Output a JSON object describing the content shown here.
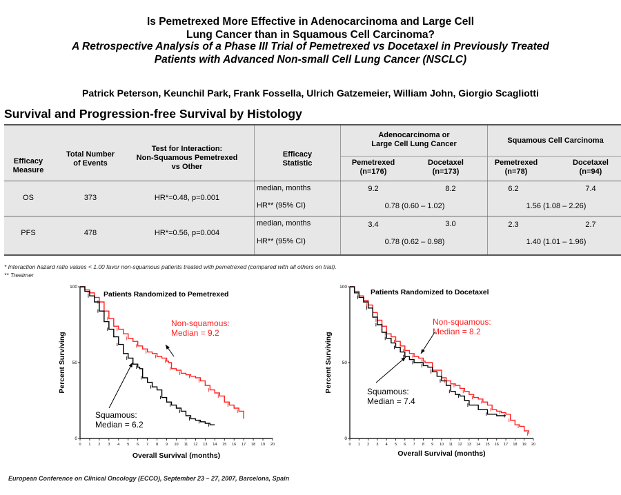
{
  "title": {
    "line1": "Is Pemetrexed More Effective in Adenocarcinoma and Large Cell",
    "line2": "Lung Cancer than in Squamous Cell Carcinoma?",
    "line3": "A Retrospective Analysis of a Phase III Trial of Pemetrexed vs Docetaxel in Previously Treated",
    "line4": "Patients with Advanced Non-small Cell Lung Cancer (NSCLC)"
  },
  "authors": "Patrick Peterson, Keunchil Park, Frank Fossella, Ulrich Gatzemeier, William John, Giorgio Scagliotti",
  "section_title": "Survival and Progression-free Survival by Histology",
  "table": {
    "headers": {
      "efficacy_measure": [
        "Efficacy",
        "Measure"
      ],
      "total_events": [
        "Total Number",
        "of Events"
      ],
      "interaction": [
        "Test for Interaction:",
        "Non-Squamous Pemetrexed",
        "vs Other"
      ],
      "statistic": [
        "Efficacy",
        "Statistic"
      ],
      "group_nonsq": [
        "Adenocarcinoma or",
        "Large Cell Lung Cancer"
      ],
      "group_sq": "Squamous Cell Carcinoma",
      "nonsq_pem": [
        "Pemetrexed",
        "(n=176)"
      ],
      "nonsq_doc": [
        "Docetaxel",
        "(n=173)"
      ],
      "sq_pem": [
        "Pemetrexed",
        "(n=78)"
      ],
      "sq_doc": [
        "Docetaxel",
        "(n=94)"
      ]
    },
    "rows": [
      {
        "measure": "OS",
        "events": "373",
        "interaction": "HR*=0.48,  p=0.001",
        "stat_median": "median, months",
        "stat_hr": "HR** (95% CI)",
        "nonsq_pem": "9.2",
        "nonsq_doc": "8.2",
        "nonsq_hr": "0.78 (0.60 – 1.02)",
        "sq_pem": "6.2",
        "sq_doc": "7.4",
        "sq_hr": "1.56 (1.08 – 2.26)"
      },
      {
        "measure": "PFS",
        "events": "478",
        "interaction": "HR*=0.56,  p=0.004",
        "stat_median": "median, months",
        "stat_hr": "HR** (95% CI)",
        "nonsq_pem": "3.4",
        "nonsq_doc": "3.0",
        "nonsq_hr": "0.78 (0.62 – 0.98)",
        "sq_pem": "2.3",
        "sq_doc": "2.7",
        "sq_hr": "1.40 (1.01 – 1.96)"
      }
    ]
  },
  "footnotes": {
    "f1": "*  Interaction hazard ratio values < 1.00 favor non-squamous patients treated with pemetrexed (compared with all others on trial).",
    "f2": "** Treatmer"
  },
  "footer": "European Conference on Clinical Oncology (ECCO), September 23 – 27, 2007, Barcelona, Spain",
  "colors": {
    "nonsquamous": "#ff2020",
    "squamous": "#000000",
    "table_bg": "#e7e7e7"
  },
  "chart_data": [
    {
      "type": "line",
      "title": "Patients Randomized to Pemetrexed",
      "xlabel": "Overall Survival (months)",
      "ylabel": "Percent Surviving",
      "xlim": [
        0,
        20
      ],
      "ylim": [
        0,
        100
      ],
      "x_ticks": [
        "0",
        "1",
        "2",
        "3",
        "4",
        "5",
        "6",
        "7",
        "8",
        "9",
        "10",
        "11",
        "12",
        "13",
        "14",
        "15",
        "16",
        "17",
        "18",
        "19",
        "20"
      ],
      "y_ticks": [
        "0",
        "50",
        "100"
      ],
      "annotations": [
        {
          "lines": [
            "Non-squamous:",
            "Median = 9.2"
          ],
          "color": "#ff2020"
        },
        {
          "lines": [
            "Squamous:",
            "Median = 6.2"
          ],
          "color": "#000000"
        }
      ],
      "series": [
        {
          "color": "#ff2020",
          "x": [
            0,
            0.5,
            1,
            1.5,
            2,
            2.5,
            3,
            3.5,
            4,
            4.5,
            5,
            5.5,
            6,
            6.5,
            7,
            7.5,
            8,
            8.5,
            9,
            9.2,
            9.5,
            10,
            10.5,
            11,
            11.5,
            12,
            12.5,
            13,
            13.5,
            14,
            14.5,
            15,
            15.5,
            16,
            16.5,
            17
          ],
          "y": [
            100,
            98,
            96,
            93,
            90,
            84,
            79,
            74,
            72,
            69,
            66,
            64,
            61,
            59,
            57,
            56,
            54,
            53,
            51,
            50,
            46,
            45,
            43,
            42,
            41,
            40,
            38,
            35,
            32,
            30,
            28,
            24,
            22,
            20,
            18,
            13
          ]
        },
        {
          "color": "#000000",
          "x": [
            0,
            0.5,
            1,
            1.5,
            2,
            2.5,
            3,
            3.5,
            4,
            4.5,
            5,
            5.5,
            6,
            6.2,
            6.5,
            7,
            7.5,
            8,
            8.5,
            9,
            9.5,
            10,
            10.5,
            11,
            11.5,
            12,
            12.5,
            13,
            13.5,
            14
          ],
          "y": [
            100,
            97,
            94,
            90,
            84,
            77,
            72,
            67,
            62,
            56,
            53,
            49,
            47,
            46,
            40,
            37,
            34,
            32,
            27,
            24,
            22,
            20,
            18,
            15,
            13,
            12,
            11,
            10,
            9,
            9
          ]
        }
      ]
    },
    {
      "type": "line",
      "title": "Patients Randomized to Docetaxel",
      "xlabel": "Overall Survival (months)",
      "ylabel": "Percent Surviving",
      "xlim": [
        0,
        20
      ],
      "ylim": [
        0,
        100
      ],
      "x_ticks": [
        "0",
        "1",
        "2",
        "3",
        "4",
        "5",
        "6",
        "7",
        "8",
        "9",
        "10",
        "11",
        "12",
        "13",
        "14",
        "15",
        "16",
        "17",
        "18",
        "19",
        "20"
      ],
      "y_ticks": [
        "0",
        "50",
        "100"
      ],
      "annotations": [
        {
          "lines": [
            "Non-squamous:",
            "Median = 8.2"
          ],
          "color": "#ff2020"
        },
        {
          "lines": [
            "Squamous:",
            "Median = 7.4"
          ],
          "color": "#000000"
        }
      ],
      "series": [
        {
          "color": "#ff2020",
          "x": [
            0,
            0.5,
            1,
            1.5,
            2,
            2.5,
            3,
            3.5,
            4,
            4.5,
            5,
            5.5,
            6,
            6.5,
            7,
            7.5,
            8,
            8.2,
            9,
            10,
            10.5,
            11,
            11.5,
            12,
            12.5,
            13,
            13.5,
            14,
            14.5,
            15,
            15.5,
            16,
            16.5,
            17,
            17.5,
            18,
            18.5,
            19,
            19.5
          ],
          "y": [
            100,
            97,
            94,
            91,
            88,
            83,
            78,
            74,
            69,
            67,
            64,
            61,
            58,
            56,
            54,
            53,
            51,
            50,
            45,
            40,
            38,
            36,
            35,
            33,
            31,
            29,
            27,
            26,
            24,
            22,
            19,
            18,
            17,
            16,
            12,
            9,
            8,
            5,
            3
          ]
        },
        {
          "color": "#000000",
          "x": [
            0,
            0.5,
            1,
            1.5,
            2,
            2.5,
            3,
            3.5,
            4,
            4.5,
            5,
            5.5,
            6,
            6.5,
            7,
            7.4,
            8,
            8.5,
            9,
            9.5,
            10,
            10.5,
            11,
            11.5,
            12,
            12.5,
            13,
            14,
            15,
            16,
            17
          ],
          "y": [
            100,
            96,
            93,
            90,
            86,
            80,
            75,
            70,
            66,
            63,
            60,
            57,
            54,
            52,
            50,
            50,
            48,
            47,
            44,
            41,
            38,
            35,
            31,
            29,
            28,
            25,
            22,
            19,
            16,
            15,
            15
          ]
        }
      ]
    }
  ]
}
